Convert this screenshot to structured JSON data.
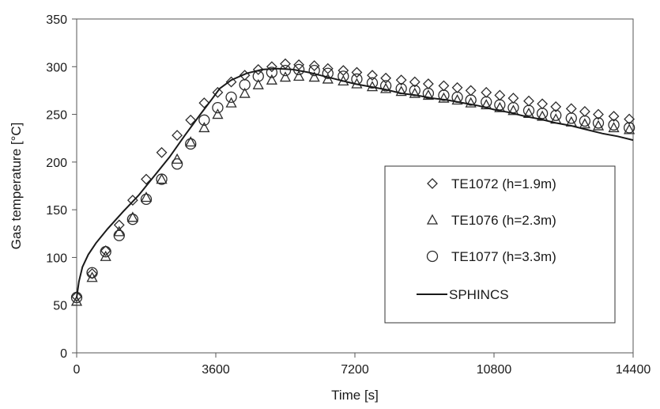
{
  "chart_data": {
    "type": "scatter",
    "xlabel": "Time [s]",
    "ylabel": "Gas temperature [°C]",
    "xlim": [
      0,
      14400
    ],
    "ylim": [
      0,
      350
    ],
    "xticks": [
      0,
      3600,
      7200,
      10800,
      14400
    ],
    "yticks": [
      0,
      50,
      100,
      150,
      200,
      250,
      300,
      350
    ],
    "grid": false,
    "legend_position": "right",
    "series": [
      {
        "name": "TE1072 (h=1.9m)",
        "marker": "diamond",
        "points": [
          [
            0,
            59
          ],
          [
            400,
            83
          ],
          [
            750,
            107
          ],
          [
            1100,
            134
          ],
          [
            1450,
            160
          ],
          [
            1800,
            182
          ],
          [
            2200,
            210
          ],
          [
            2600,
            228
          ],
          [
            2950,
            244
          ],
          [
            3300,
            262
          ],
          [
            3650,
            273
          ],
          [
            4000,
            284
          ],
          [
            4350,
            291
          ],
          [
            4700,
            297
          ],
          [
            5050,
            300
          ],
          [
            5400,
            303
          ],
          [
            5750,
            302
          ],
          [
            6150,
            301
          ],
          [
            6500,
            298
          ],
          [
            6900,
            296
          ],
          [
            7250,
            294
          ],
          [
            7650,
            291
          ],
          [
            8000,
            288
          ],
          [
            8400,
            286
          ],
          [
            8750,
            284
          ],
          [
            9100,
            282
          ],
          [
            9500,
            280
          ],
          [
            9850,
            278
          ],
          [
            10200,
            275
          ],
          [
            10600,
            273
          ],
          [
            10950,
            270
          ],
          [
            11300,
            267
          ],
          [
            11700,
            264
          ],
          [
            12050,
            261
          ],
          [
            12400,
            258
          ],
          [
            12800,
            256
          ],
          [
            13150,
            253
          ],
          [
            13500,
            250
          ],
          [
            13900,
            248
          ],
          [
            14300,
            245
          ]
        ]
      },
      {
        "name": "TE1076 (h=2.3m)",
        "marker": "triangle",
        "points": [
          [
            0,
            54
          ],
          [
            400,
            79
          ],
          [
            750,
            101
          ],
          [
            1100,
            127
          ],
          [
            1450,
            142
          ],
          [
            1800,
            163
          ],
          [
            2200,
            182
          ],
          [
            2600,
            203
          ],
          [
            2950,
            221
          ],
          [
            3300,
            236
          ],
          [
            3650,
            250
          ],
          [
            4000,
            262
          ],
          [
            4350,
            272
          ],
          [
            4700,
            281
          ],
          [
            5050,
            286
          ],
          [
            5400,
            289
          ],
          [
            5750,
            290
          ],
          [
            6150,
            289
          ],
          [
            6500,
            287
          ],
          [
            6900,
            285
          ],
          [
            7250,
            282
          ],
          [
            7650,
            279
          ],
          [
            8000,
            277
          ],
          [
            8400,
            274
          ],
          [
            8750,
            272
          ],
          [
            9100,
            270
          ],
          [
            9500,
            267
          ],
          [
            9850,
            265
          ],
          [
            10200,
            262
          ],
          [
            10600,
            260
          ],
          [
            10950,
            257
          ],
          [
            11300,
            254
          ],
          [
            11700,
            251
          ],
          [
            12050,
            248
          ],
          [
            12400,
            245
          ],
          [
            12800,
            242
          ],
          [
            13150,
            240
          ],
          [
            13500,
            238
          ],
          [
            13900,
            236
          ],
          [
            14300,
            234
          ]
        ]
      },
      {
        "name": "TE1077 (h=3.3m)",
        "marker": "circle",
        "points": [
          [
            0,
            58
          ],
          [
            400,
            84
          ],
          [
            750,
            106
          ],
          [
            1100,
            123
          ],
          [
            1450,
            140
          ],
          [
            1800,
            161
          ],
          [
            2200,
            182
          ],
          [
            2600,
            198
          ],
          [
            2950,
            219
          ],
          [
            3300,
            244
          ],
          [
            3650,
            257
          ],
          [
            4000,
            268
          ],
          [
            4350,
            281
          ],
          [
            4700,
            290
          ],
          [
            5050,
            294
          ],
          [
            5400,
            296
          ],
          [
            5750,
            297
          ],
          [
            6150,
            296
          ],
          [
            6500,
            293
          ],
          [
            6900,
            290
          ],
          [
            7250,
            287
          ],
          [
            7650,
            283
          ],
          [
            8000,
            280
          ],
          [
            8400,
            277
          ],
          [
            8750,
            275
          ],
          [
            9100,
            272
          ],
          [
            9500,
            270
          ],
          [
            9850,
            268
          ],
          [
            10200,
            265
          ],
          [
            10600,
            263
          ],
          [
            10950,
            260
          ],
          [
            11300,
            257
          ],
          [
            11700,
            254
          ],
          [
            12050,
            251
          ],
          [
            12400,
            249
          ],
          [
            12800,
            246
          ],
          [
            13150,
            243
          ],
          [
            13500,
            241
          ],
          [
            13900,
            239
          ],
          [
            14300,
            236
          ]
        ]
      },
      {
        "name": "SPHINCS",
        "marker": "line",
        "points": [
          [
            0,
            58
          ],
          [
            60,
            75
          ],
          [
            150,
            90
          ],
          [
            300,
            103
          ],
          [
            500,
            115
          ],
          [
            800,
            130
          ],
          [
            1200,
            148
          ],
          [
            1600,
            165
          ],
          [
            2000,
            185
          ],
          [
            2400,
            205
          ],
          [
            2800,
            228
          ],
          [
            3200,
            250
          ],
          [
            3500,
            266
          ],
          [
            3700,
            277
          ],
          [
            4000,
            286
          ],
          [
            4400,
            293
          ],
          [
            4800,
            297
          ],
          [
            5200,
            298
          ],
          [
            5600,
            297
          ],
          [
            6000,
            294
          ],
          [
            6400,
            290
          ],
          [
            6800,
            286
          ],
          [
            7200,
            282
          ],
          [
            7600,
            279
          ],
          [
            8000,
            276
          ],
          [
            8400,
            272
          ],
          [
            8800,
            270
          ],
          [
            9200,
            267
          ],
          [
            9600,
            265
          ],
          [
            10000,
            262
          ],
          [
            10400,
            259
          ],
          [
            10800,
            255
          ],
          [
            11200,
            252
          ],
          [
            11600,
            248
          ],
          [
            12000,
            245
          ],
          [
            12400,
            241
          ],
          [
            12800,
            238
          ],
          [
            13200,
            234
          ],
          [
            13600,
            230
          ],
          [
            14000,
            227
          ],
          [
            14400,
            223
          ]
        ]
      }
    ]
  }
}
